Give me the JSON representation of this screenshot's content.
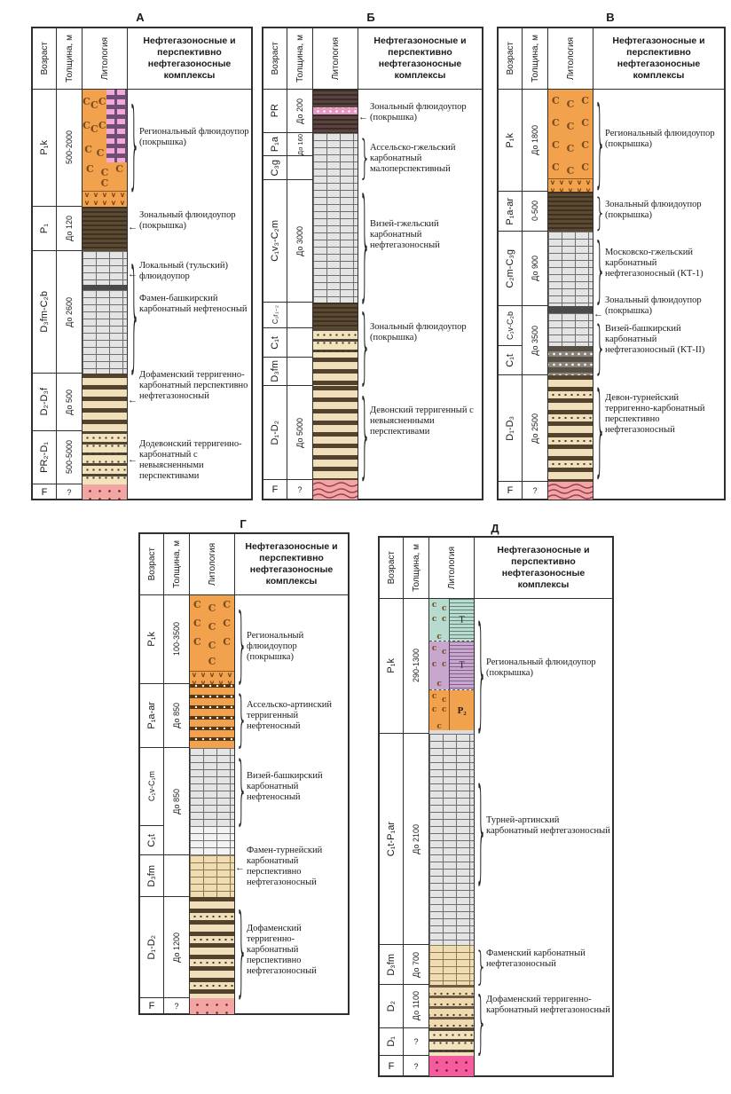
{
  "header": {
    "age": "Возраст",
    "thickness": "Толщина, м",
    "lithology": "Литология",
    "complexes": "Нефтегазоносные и перспективно нефтегазоносные комплексы"
  },
  "icons": {
    "brace": "}",
    "arrow": "←"
  },
  "symbols": {
    "halite": "C",
    "halite_small": "c",
    "volcanic": "v",
    "gypsum": "Т",
    "upper_permian": "P₂"
  },
  "panels": [
    {
      "letter": "А",
      "strata": [
        {
          "age": "P₁k",
          "thickness": "500-2000"
        },
        {
          "age": "P₁",
          "thickness": "До 120"
        },
        {
          "age": "D₃fm-C₂b",
          "thickness": "До 2600"
        },
        {
          "age": "D₂-D₃f",
          "thickness": "До 500"
        },
        {
          "age": "PR₂-D₁",
          "thickness": "500-5000"
        },
        {
          "age": "F",
          "thickness": "?"
        }
      ],
      "labels": [
        "Региональный флюидоупор (покрышка)",
        "Зональный флюидоупор (покрышка)",
        "Локальный (тульский) флюидоупор",
        "Фамен-башкирский карбонатный нефтеносный",
        "Дофаменский терригенно-карбонатный перспективно нефтегазоносный",
        "Додевонский терригенно-карбонатный с невыясненными перспективами"
      ]
    },
    {
      "letter": "Б",
      "strata": [
        {
          "age": "PR",
          "thickness": "До 200"
        },
        {
          "age": "P₁a",
          "thickness": "До 160"
        },
        {
          "age": "C₃g",
          "thickness": ""
        },
        {
          "age": "C₁v₃-C₂m",
          "thickness": "До 3000"
        },
        {
          "age": "C₁r₁₋₂",
          "thickness": ""
        },
        {
          "age": "C₁t",
          "thickness": ""
        },
        {
          "age": "D₃fm",
          "thickness": ""
        },
        {
          "age": "D₁-D₂",
          "thickness": "До 5000"
        },
        {
          "age": "F",
          "thickness": "?"
        }
      ],
      "labels": [
        "Зональный флюидоупор (покрышка)",
        "Ассельско-гжельский карбонатный малоперспективный",
        "Визей-гжельский карбонатный нефтегазоносный",
        "Зональный флюидоупор (покрышка)",
        "Девонский терригенный с невыясненными перспективами"
      ]
    },
    {
      "letter": "В",
      "strata": [
        {
          "age": "P₁k",
          "thickness": "До 1800"
        },
        {
          "age": "P₁a-ar",
          "thickness": "0-500"
        },
        {
          "age": "C₂m-C₃g",
          "thickness": "До 900"
        },
        {
          "age": "C₁v-C₂b",
          "thickness": "До 3500"
        },
        {
          "age": "C₁t",
          "thickness": ""
        },
        {
          "age": "D₁-D₃",
          "thickness": "До 2500"
        },
        {
          "age": "F",
          "thickness": "?"
        }
      ],
      "labels": [
        "Региональный флюидоупор (покрышка)",
        "Зональный флюидоупор (покрышка)",
        "Московско-гжельский карбонатный нефтегазоносный (КТ-1)",
        "Зональный флюидоупор (покрышка)",
        "Визей-башкирский карбонатный нефтегазоносный (КТ-II)",
        "Девон-турнейский терригенно-карбонатный перспективно нефтегазоносный"
      ]
    },
    {
      "letter": "Г",
      "strata": [
        {
          "age": "P₁k",
          "thickness": "100-3500"
        },
        {
          "age": "P₁a-ar",
          "thickness": "До 850"
        },
        {
          "age": "C₁v-C₁m",
          "thickness": "До 850"
        },
        {
          "age": "C₁t",
          "thickness": ""
        },
        {
          "age": "D₃fm",
          "thickness": ""
        },
        {
          "age": "D₁-D₂",
          "thickness": "До 1200"
        },
        {
          "age": "F",
          "thickness": "?"
        }
      ],
      "labels": [
        "Региональный флюидоупор (покрышка)",
        "Ассельско-артинский терригенный нефтеносный",
        "Визей-башкирский карбонатный нефтеносный",
        "Фамен-турнейский карбонатный перспективно нефтегазоносный",
        "Дофаменский терригенно-карбонатный перспективно нефтегазоносный"
      ]
    },
    {
      "letter": "Д",
      "strata": [
        {
          "age": "P₁k",
          "thickness": "290-1300"
        },
        {
          "age": "C₁t-P₁ar",
          "thickness": "До 2100"
        },
        {
          "age": "D₃fm",
          "thickness": "До 700"
        },
        {
          "age": "D₂",
          "thickness": "До 1100"
        },
        {
          "age": "D₁",
          "thickness": "?"
        },
        {
          "age": "F",
          "thickness": "?"
        }
      ],
      "labels": [
        "Региональный флюидоупор (покрышка)",
        "Турней-артинский карбонатный нефтегазоносный",
        "Фаменский карбонатный нефтегазоносный",
        "Дофаменский терригенно-карбонатный нефтегазоносный"
      ]
    }
  ]
}
